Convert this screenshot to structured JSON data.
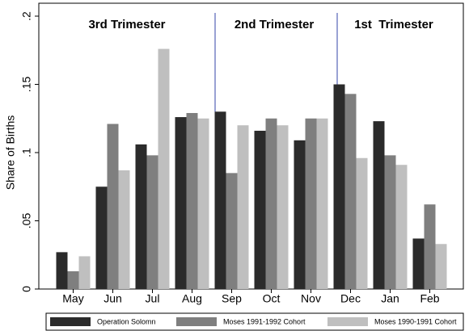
{
  "chart_data": {
    "type": "bar",
    "y_label": "Share of Births",
    "annotations": [
      "3rd Trimester",
      "2nd Trimester",
      "1st  Trimester"
    ],
    "categories": [
      "May",
      "Jun",
      "Jul",
      "Aug",
      "Sep",
      "Oct",
      "Nov",
      "Dec",
      "Jan",
      "Feb"
    ],
    "series": [
      {
        "name": "Operation Solomn",
        "color": "#2b2b2b",
        "values": [
          0.027,
          0.075,
          0.106,
          0.126,
          0.13,
          0.116,
          0.109,
          0.15,
          0.123,
          0.037
        ]
      },
      {
        "name": "Moses 1991-1992 Cohort",
        "color": "#7f7f7f",
        "values": [
          0.013,
          0.121,
          0.098,
          0.129,
          0.085,
          0.125,
          0.125,
          0.143,
          0.098,
          0.062
        ]
      },
      {
        "name": "Moses 1990-1991 Cohort",
        "color": "#bfbfbf",
        "values": [
          0.024,
          0.087,
          0.176,
          0.125,
          0.12,
          0.12,
          0.125,
          0.096,
          0.091,
          0.033
        ]
      }
    ],
    "ylim": [
      0,
      0.2
    ],
    "yticks": [
      0,
      {
        "value": 0.05,
        "label": ".05"
      },
      {
        "value": 0.1,
        "label": ".1"
      },
      {
        "value": 0.15,
        "label": ".15"
      },
      {
        "value": 0.2,
        "label": ".2"
      }
    ],
    "legend": "bottom"
  }
}
